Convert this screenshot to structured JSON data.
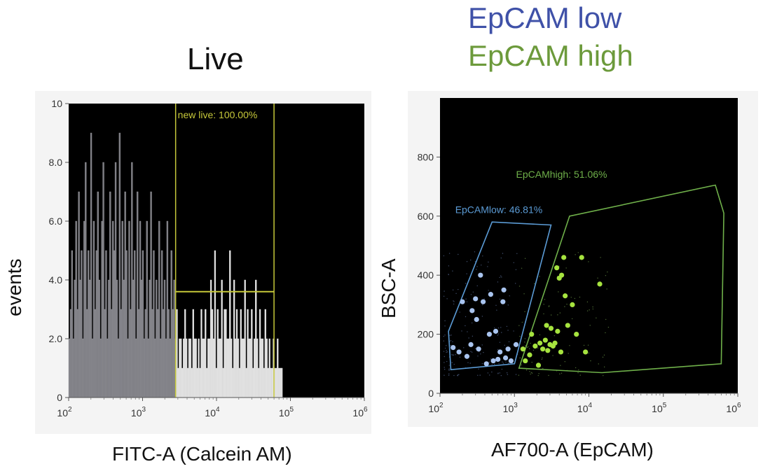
{
  "legend": {
    "low_label": "EpCAM low",
    "low_color": "#3f51a8",
    "high_label": "EpCAM high",
    "high_color": "#6c9a3b"
  },
  "chart_data": [
    {
      "type": "histogram",
      "title": "Live",
      "xlabel": "FITC-A (Calcein AM)",
      "ylabel": "events",
      "x_scale": "log",
      "xlim": [
        100,
        1000000
      ],
      "ylim": [
        0,
        10
      ],
      "y_ticks": [
        "0",
        "2.0",
        "4.0",
        "6.0",
        "8.0",
        "10"
      ],
      "x_ticks": [
        {
          "value": 100,
          "base": "10",
          "exp": "2"
        },
        {
          "value": 1000,
          "base": "10",
          "exp": "3"
        },
        {
          "value": 10000,
          "base": "10",
          "exp": "4"
        },
        {
          "value": 100000,
          "base": "10",
          "exp": "5"
        },
        {
          "value": 1000000,
          "base": "10",
          "exp": "6"
        }
      ],
      "gate": {
        "label": "new live: 100.00%",
        "x_range": [
          2800,
          60000
        ],
        "marker_y": 3.6,
        "color": "#c6c83a"
      },
      "bins": {
        "x_start": 100,
        "x_end": 78000,
        "counts": [
          2,
          3,
          5,
          2,
          4,
          6,
          3,
          7,
          4,
          5,
          2,
          6,
          8,
          3,
          5,
          4,
          9,
          2,
          6,
          3,
          5,
          7,
          4,
          2,
          6,
          8,
          3,
          5,
          2,
          4,
          7,
          3,
          6,
          5,
          8,
          4,
          2,
          9,
          3,
          6,
          4,
          7,
          5,
          2,
          6,
          3,
          8,
          4,
          5,
          2,
          7,
          3,
          6,
          4,
          5,
          2,
          3,
          6,
          2,
          4,
          7,
          3,
          5,
          2,
          4,
          3,
          6,
          2,
          5,
          3,
          4,
          2,
          6,
          3,
          2,
          5,
          3,
          4,
          2,
          3,
          1,
          2,
          2,
          1,
          2,
          3,
          2,
          1,
          2,
          2,
          1,
          3,
          2,
          2,
          1,
          2,
          1,
          3,
          2,
          2,
          3,
          1,
          2,
          2,
          4,
          3,
          2,
          5,
          1,
          3,
          2,
          2,
          4,
          1,
          3,
          3,
          2,
          2,
          5,
          2,
          1,
          4,
          2,
          3,
          2,
          1,
          3,
          2,
          2,
          4,
          1,
          3,
          2,
          2,
          3,
          1,
          2,
          4,
          2,
          1,
          3,
          2,
          2,
          1,
          3,
          2,
          1,
          2,
          1,
          1,
          2,
          1,
          1,
          2,
          1,
          1,
          1
        ]
      }
    },
    {
      "type": "scatter",
      "xlabel": "AF700-A (EpCAM)",
      "ylabel": "BSC-A",
      "x_scale": "log",
      "xlim": [
        100,
        1000000
      ],
      "ylim": [
        0,
        1000
      ],
      "y_ticks": [
        0,
        200,
        400,
        600,
        800
      ],
      "x_ticks": [
        {
          "value": 100,
          "base": "10",
          "exp": "2"
        },
        {
          "value": 1000,
          "base": "10",
          "exp": "3"
        },
        {
          "value": 10000,
          "base": "10",
          "exp": "4"
        },
        {
          "value": 100000,
          "base": "10",
          "exp": "5"
        },
        {
          "value": 1000000,
          "base": "10",
          "exp": "6"
        }
      ],
      "gates": [
        {
          "name": "EpCAMlow",
          "label": "EpCAMlow: 46.81%",
          "color": "#5b9bd5",
          "polygon": [
            [
              140,
              80
            ],
            [
              1000,
              100
            ],
            [
              3100,
              570
            ],
            [
              500,
              580
            ],
            [
              130,
              210
            ]
          ]
        },
        {
          "name": "EpCAMhigh",
          "label": "EpCAMhigh: 51.06%",
          "color": "#6fb04a",
          "polygon": [
            [
              1150,
              85
            ],
            [
              15000,
              70
            ],
            [
              600000,
              100
            ],
            [
              650000,
              610
            ],
            [
              500000,
              705
            ],
            [
              5500,
              600
            ]
          ]
        }
      ],
      "series": [
        {
          "name": "EpCAMlow",
          "color": "#a9c4ef",
          "points": [
            [
              150,
              155
            ],
            [
              180,
              140
            ],
            [
              200,
              310
            ],
            [
              230,
              125
            ],
            [
              260,
              165
            ],
            [
              270,
              280
            ],
            [
              300,
              320
            ],
            [
              310,
              250
            ],
            [
              330,
              150
            ],
            [
              350,
              400
            ],
            [
              380,
              310
            ],
            [
              420,
              100
            ],
            [
              460,
              200
            ],
            [
              480,
              335
            ],
            [
              520,
              110
            ],
            [
              560,
              210
            ],
            [
              600,
              115
            ],
            [
              640,
              140
            ],
            [
              700,
              310
            ],
            [
              720,
              350
            ],
            [
              760,
              120
            ],
            [
              820,
              150
            ],
            [
              900,
              110
            ],
            [
              1050,
              165
            ]
          ]
        },
        {
          "name": "EpCAMhigh",
          "color": "#a6e33f",
          "points": [
            [
              1300,
              150
            ],
            [
              1400,
              110
            ],
            [
              1600,
              130
            ],
            [
              1700,
              200
            ],
            [
              1900,
              160
            ],
            [
              2100,
              95
            ],
            [
              2200,
              170
            ],
            [
              2400,
              150
            ],
            [
              2600,
              180
            ],
            [
              2700,
              230
            ],
            [
              2800,
              145
            ],
            [
              3000,
              165
            ],
            [
              3100,
              220
            ],
            [
              3300,
              160
            ],
            [
              3500,
              170
            ],
            [
              3700,
              425
            ],
            [
              3800,
              210
            ],
            [
              4000,
              390
            ],
            [
              4200,
              140
            ],
            [
              4300,
              400
            ],
            [
              4600,
              460
            ],
            [
              4800,
              330
            ],
            [
              5200,
              230
            ],
            [
              6000,
              300
            ],
            [
              6800,
              200
            ],
            [
              8000,
              460
            ],
            [
              9000,
              140
            ],
            [
              14000,
              370
            ]
          ]
        }
      ]
    }
  ]
}
